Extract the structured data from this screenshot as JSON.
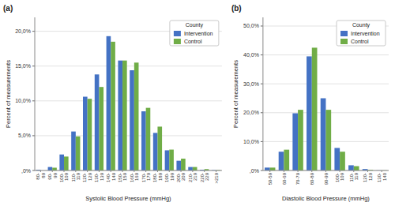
{
  "chart_data": [
    {
      "type": "bar",
      "title": "(a)",
      "categories": [
        "80-\n89",
        "90-\n99",
        "100-\n109",
        "110-\n119",
        "120-\n129",
        "130-\n139",
        "140-\n149",
        "150-\n159",
        "160-\n169",
        "170-\n179",
        "180-\n189",
        "190-\n199",
        "200-\n209",
        "210-\n219",
        "220-\n229",
        ">219"
      ],
      "series": [
        {
          "name": "Intervention",
          "color": "#4472C4",
          "values": [
            0.1,
            0.5,
            2.3,
            5.6,
            10.6,
            13.8,
            19.3,
            15.8,
            14.4,
            8.5,
            5.4,
            2.9,
            1.4,
            0.5,
            0.1,
            0.05
          ]
        },
        {
          "name": "Control",
          "color": "#70AD47",
          "values": [
            0.0,
            0.4,
            2.0,
            4.9,
            10.3,
            12.0,
            18.5,
            15.8,
            15.5,
            9.0,
            6.3,
            3.0,
            1.7,
            0.5,
            0.2,
            0.05
          ]
        }
      ],
      "xlabel": "Systolic Blood Pressure (mmHg)",
      "ylabel": "Percent of measurements",
      "ylim": [
        0,
        22
      ],
      "yticks": [
        {
          "value": 0,
          "label": ",0%"
        },
        {
          "value": 5.0,
          "label": "5,0%"
        },
        {
          "value": 10.0,
          "label": "10,0%"
        },
        {
          "value": 15.0,
          "label": "15,0%"
        },
        {
          "value": 20.0,
          "label": "20,0%"
        }
      ],
      "grid": true,
      "legend": "upper right",
      "legend_title": "County"
    },
    {
      "type": "bar",
      "title": "(b)",
      "categories": [
        "50-59",
        "60-69",
        "70-79",
        "80-89",
        "90-99",
        "100-\n109",
        "110-\n119",
        "120-\n129",
        "130-\n140"
      ],
      "series": [
        {
          "name": "Intervention",
          "color": "#4472C4",
          "values": [
            1.0,
            6.5,
            19.8,
            39.5,
            25.0,
            7.8,
            1.8,
            0.5,
            0.05
          ]
        },
        {
          "name": "Control",
          "color": "#70AD47",
          "values": [
            1.0,
            7.2,
            21.0,
            42.5,
            21.0,
            6.5,
            1.5,
            0.2,
            0.05
          ]
        }
      ],
      "xlabel": "Diastolic Blood Pressure (mmHg)",
      "ylabel": "Percent of measurements",
      "ylim": [
        0,
        53
      ],
      "yticks": [
        {
          "value": 0,
          "label": ",0%"
        },
        {
          "value": 10.0,
          "label": "10,0%"
        },
        {
          "value": 20.0,
          "label": "20,0%"
        },
        {
          "value": 30.0,
          "label": "30,0%"
        },
        {
          "value": 40.0,
          "label": "40,0%"
        },
        {
          "value": 50.0,
          "label": "50,0%"
        }
      ],
      "grid": true,
      "legend": "upper right",
      "legend_title": "County"
    }
  ]
}
